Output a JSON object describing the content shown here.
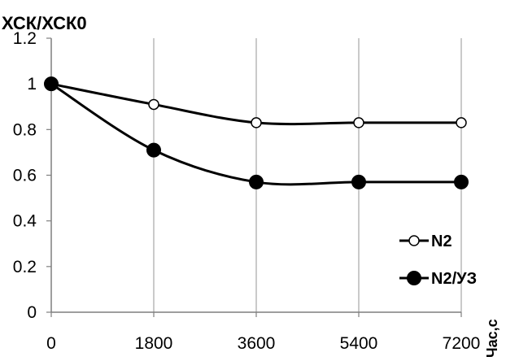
{
  "chart_data": {
    "type": "line",
    "ylabel": "ХСК/ХСК0",
    "xlabel": "Час,с",
    "x": [
      0,
      1800,
      3600,
      5400,
      7200
    ],
    "xlim": [
      0,
      7200
    ],
    "ylim": [
      0,
      1.2
    ],
    "x_ticks": [
      "0",
      "1800",
      "3600",
      "5400",
      "7200"
    ],
    "y_ticks": [
      "0",
      "0.2",
      "0.4",
      "0.6",
      "0.8",
      "1",
      "1.2"
    ],
    "grid": "vertical",
    "legend_position": "right",
    "series": [
      {
        "name": "N2",
        "values": [
          1.0,
          0.91,
          0.83,
          0.83,
          0.83
        ],
        "marker": "open-circle",
        "color": "#000000"
      },
      {
        "name": "N2/УЗ",
        "values": [
          1.0,
          0.71,
          0.57,
          0.57,
          0.57
        ],
        "marker": "filled-circle",
        "color": "#000000"
      }
    ]
  }
}
